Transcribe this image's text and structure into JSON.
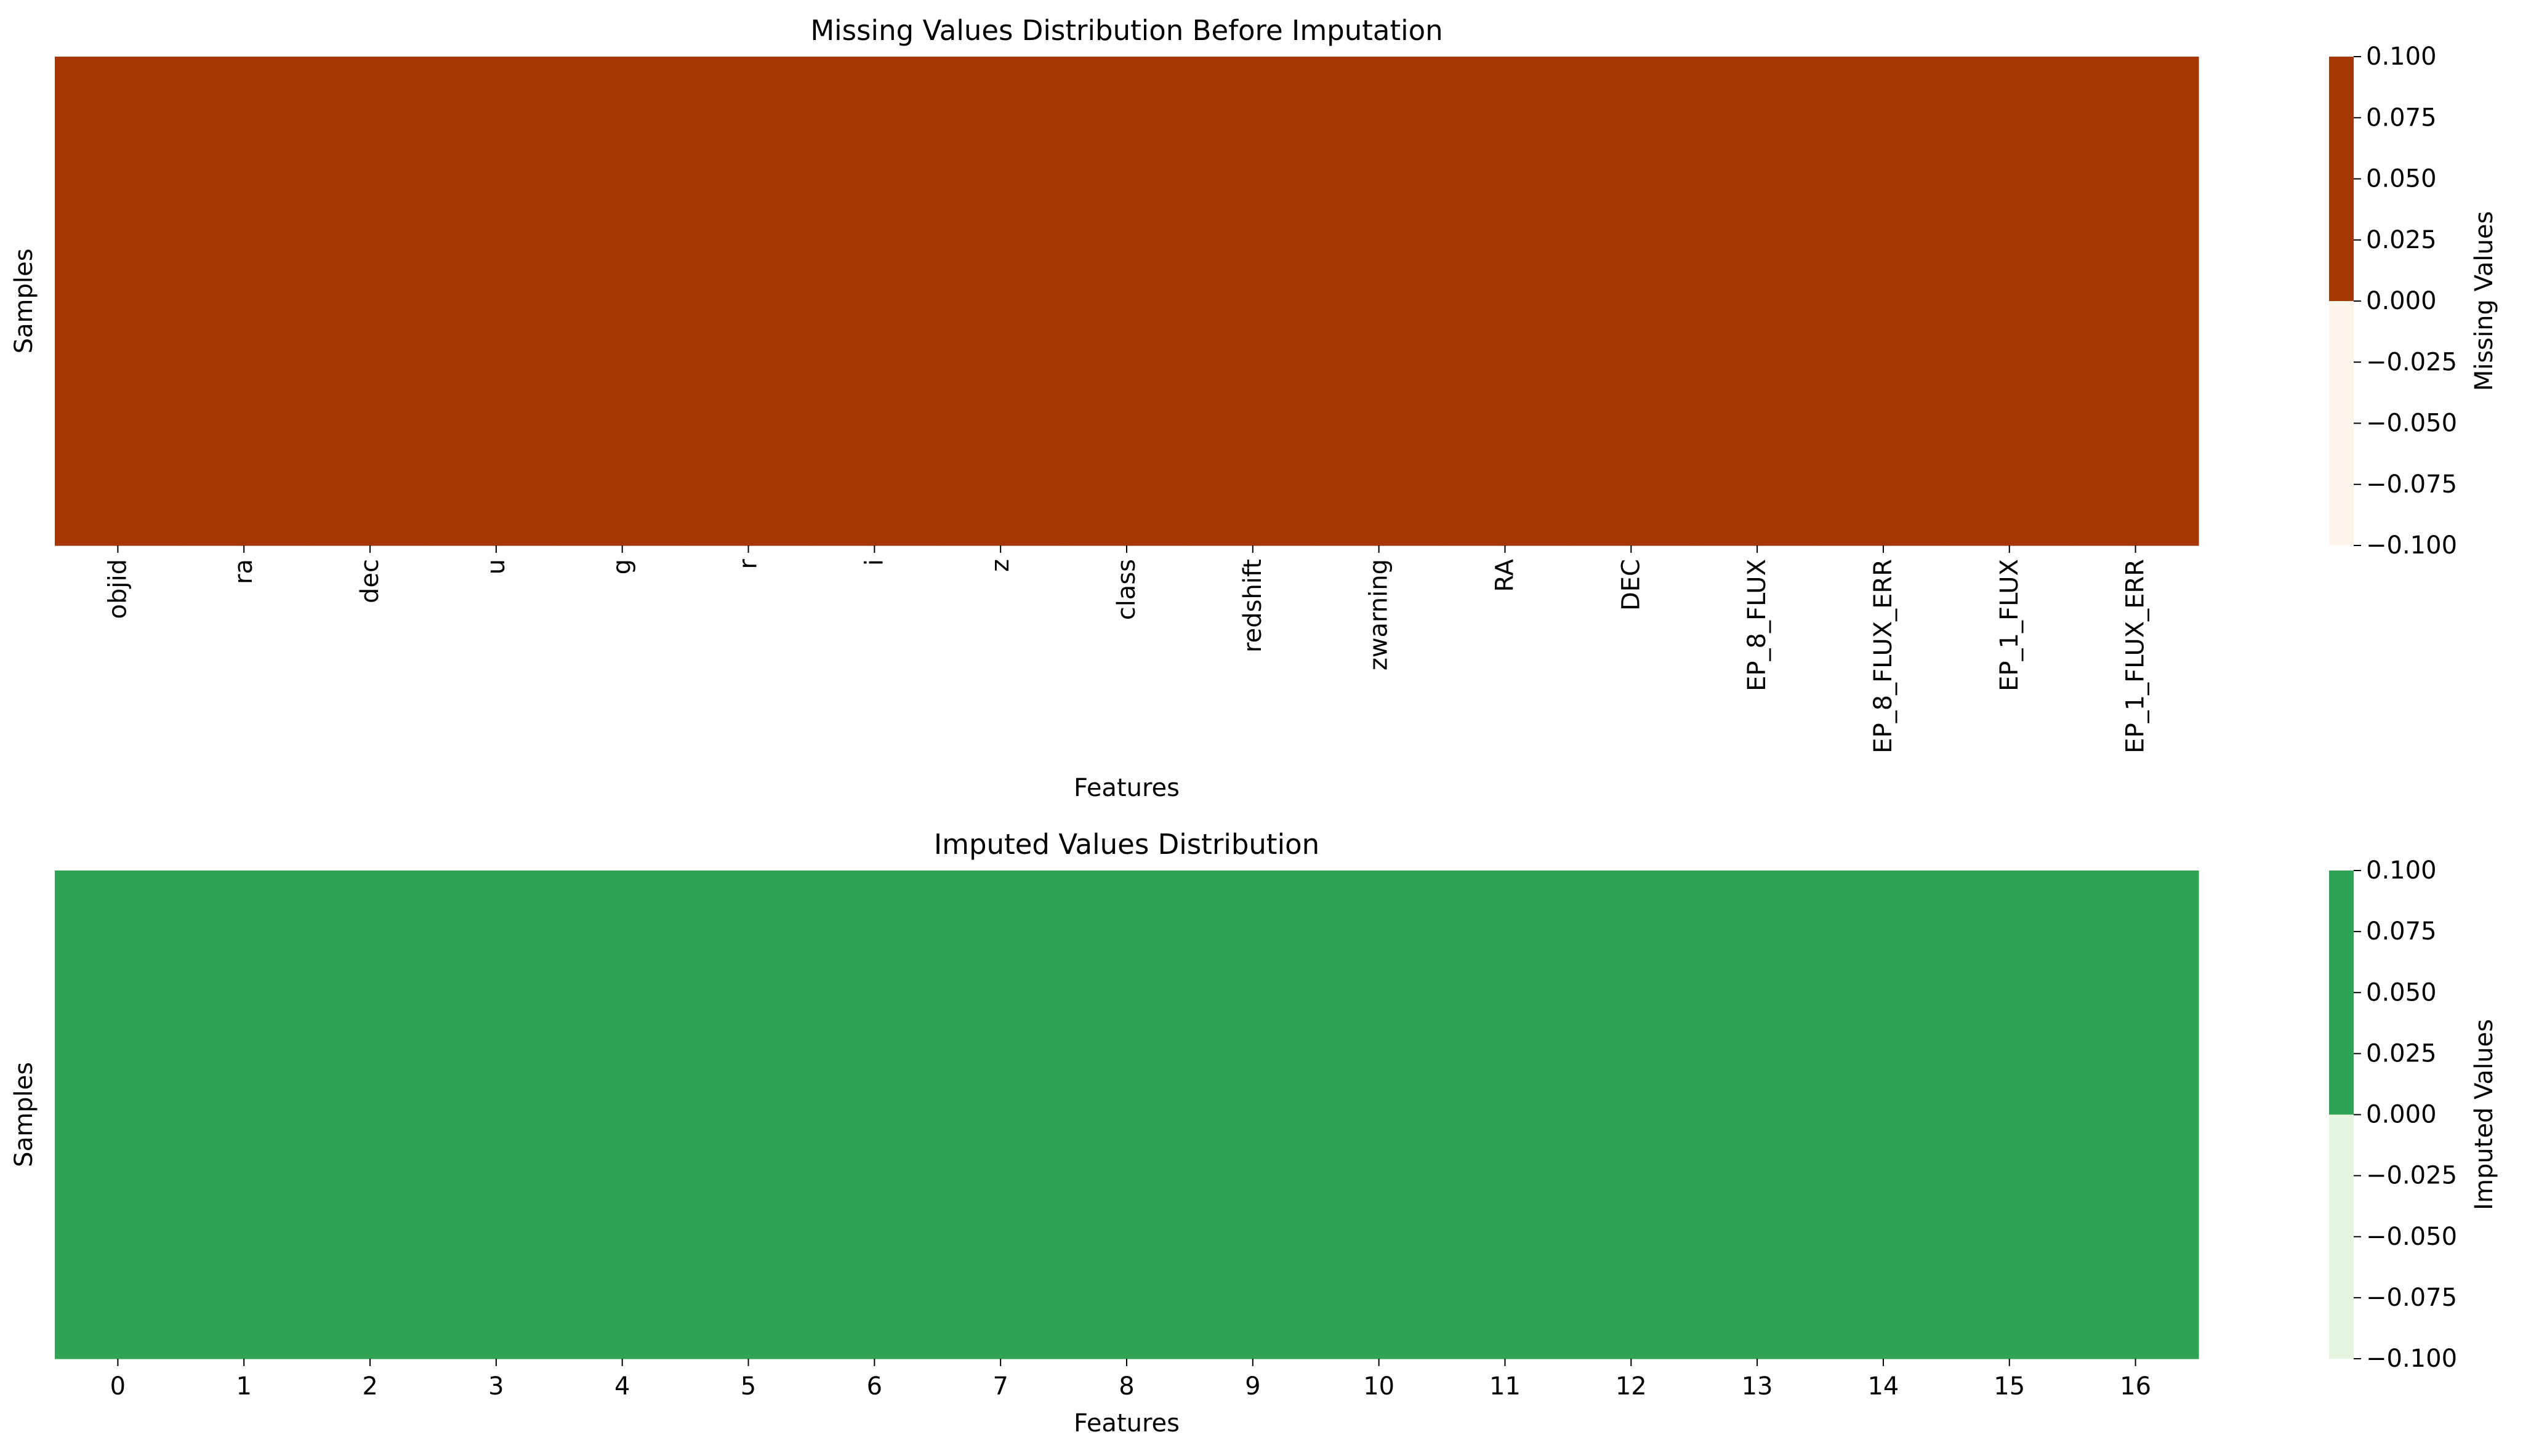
{
  "chart_data": [
    {
      "type": "heatmap",
      "title": "Missing Values Distribution Before Imputation",
      "xlabel": "Features",
      "ylabel": "Samples",
      "x_tick_labels": [
        "objid",
        "ra",
        "dec",
        "u",
        "g",
        "r",
        "i",
        "z",
        "class",
        "redshift",
        "zwarning",
        "RA",
        "DEC",
        "EP_8_FLUX",
        "EP_8_FLUX_ERR",
        "EP_1_FLUX",
        "EP_1_FLUX_ERR"
      ],
      "x_tick_rotation": "vertical",
      "values": [
        [
          1,
          1,
          1,
          1,
          1,
          1,
          1,
          1,
          1,
          1,
          1,
          1,
          1,
          1,
          1,
          1,
          1
        ]
      ],
      "colorbar": {
        "label": "Missing Values",
        "ticks": [
          "0.100",
          "0.075",
          "0.050",
          "0.025",
          "0.000",
          "−0.025",
          "−0.050",
          "−0.075",
          "−0.100"
        ],
        "range": [
          -0.1,
          0.1
        ],
        "colors": [
          "#fff5eb",
          "#a63603"
        ]
      },
      "cell_color": "#a63603"
    },
    {
      "type": "heatmap",
      "title": "Imputed Values Distribution",
      "xlabel": "Features",
      "ylabel": "Samples",
      "x_tick_labels": [
        "0",
        "1",
        "2",
        "3",
        "4",
        "5",
        "6",
        "7",
        "8",
        "9",
        "10",
        "11",
        "12",
        "13",
        "14",
        "15",
        "16"
      ],
      "x_tick_rotation": "horizontal",
      "values": [
        [
          1,
          1,
          1,
          1,
          1,
          1,
          1,
          1,
          1,
          1,
          1,
          1,
          1,
          1,
          1,
          1,
          1
        ]
      ],
      "colorbar": {
        "label": "Imputed Values",
        "ticks": [
          "0.100",
          "0.075",
          "0.050",
          "0.025",
          "0.000",
          "−0.025",
          "−0.050",
          "−0.075",
          "−0.100"
        ],
        "range": [
          -0.1,
          0.1
        ],
        "colors": [
          "#e5f5e0",
          "#31a354"
        ]
      },
      "cell_color": "#31a354"
    }
  ]
}
